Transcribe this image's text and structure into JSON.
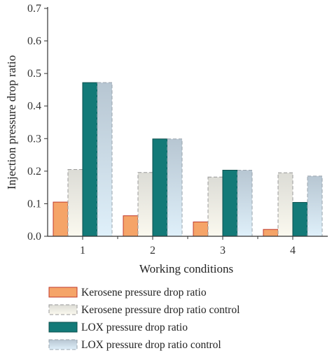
{
  "chart_data": {
    "type": "bar",
    "title": "",
    "xlabel": "Working conditions",
    "ylabel": "Injection pressure drop ratio",
    "categories": [
      "1",
      "2",
      "3",
      "4"
    ],
    "ylim": [
      0,
      0.7
    ],
    "yticks": [
      "0.0",
      "0.1",
      "0.2",
      "0.3",
      "0.4",
      "0.5",
      "0.6",
      "0.7"
    ],
    "grid": false,
    "legend_position": "bottom",
    "series": [
      {
        "name": "Kerosene pressure drop ratio",
        "values": [
          0.105,
          0.063,
          0.044,
          0.021
        ],
        "fill": "#f5a468",
        "stroke": "#c0392b",
        "style": "solid"
      },
      {
        "name": "Kerosene pressure drop ratio control",
        "values": [
          0.205,
          0.196,
          0.182,
          0.195
        ],
        "fill": "gradient-beige",
        "stroke": "#9a9a9a",
        "style": "dashed"
      },
      {
        "name": "LOX pressure drop ratio",
        "values": [
          0.472,
          0.299,
          0.203,
          0.104
        ],
        "fill": "#137a78",
        "stroke": "#0b4f4d",
        "style": "solid"
      },
      {
        "name": "LOX pressure drop ratio control",
        "values": [
          0.472,
          0.299,
          0.203,
          0.185
        ],
        "fill": "gradient-blue",
        "stroke": "#9aa4ad",
        "style": "dashed"
      }
    ]
  }
}
